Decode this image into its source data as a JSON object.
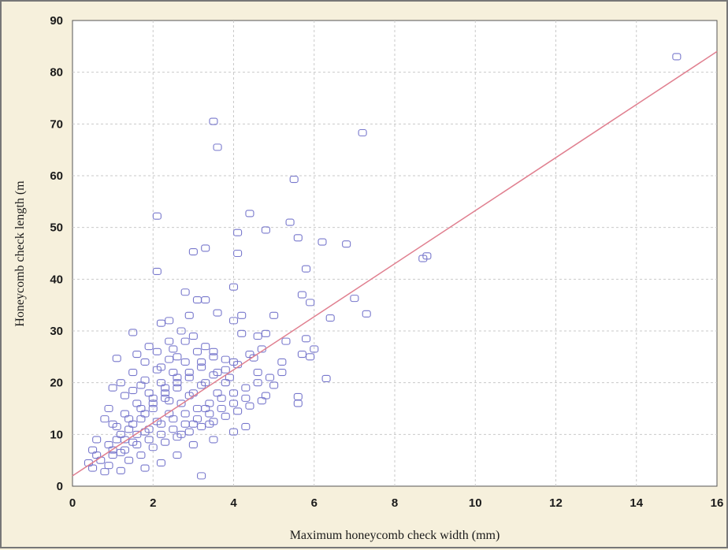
{
  "chart_data": {
    "type": "scatter",
    "title": "",
    "xlabel": "Maximum honeycomb check width (mm)",
    "ylabel": "Honeycomb check length (m",
    "xlim": [
      0,
      16
    ],
    "ylim": [
      0,
      90
    ],
    "xticks": [
      "0",
      "2",
      "4",
      "6",
      "8",
      "10",
      "12",
      "14",
      "16"
    ],
    "yticks": [
      "0",
      "10",
      "20",
      "30",
      "40",
      "50",
      "60",
      "70",
      "80",
      "90"
    ],
    "grid": true,
    "marker_color": "#7777cc",
    "fit_line": {
      "color": "#e07f8f",
      "x": [
        0,
        16
      ],
      "y": [
        2,
        84
      ]
    },
    "series": [
      {
        "points": [
          [
            3.5,
            70.5
          ],
          [
            3.6,
            65.5
          ],
          [
            7.2,
            68.3
          ],
          [
            5.5,
            59.3
          ],
          [
            15.0,
            83.0
          ],
          [
            2.1,
            52.2
          ],
          [
            4.4,
            52.7
          ],
          [
            5.4,
            51.0
          ],
          [
            4.1,
            49.0
          ],
          [
            4.8,
            49.5
          ],
          [
            5.6,
            48.0
          ],
          [
            6.2,
            47.2
          ],
          [
            6.8,
            46.8
          ],
          [
            3.0,
            45.3
          ],
          [
            3.3,
            46.0
          ],
          [
            4.1,
            45.0
          ],
          [
            8.8,
            44.5
          ],
          [
            8.7,
            44.0
          ],
          [
            2.1,
            41.5
          ],
          [
            5.8,
            42.0
          ],
          [
            4.0,
            38.5
          ],
          [
            2.8,
            37.5
          ],
          [
            3.1,
            36.0
          ],
          [
            3.3,
            36.0
          ],
          [
            5.7,
            37.0
          ],
          [
            7.0,
            36.3
          ],
          [
            5.9,
            35.5
          ],
          [
            3.6,
            33.5
          ],
          [
            4.2,
            33.0
          ],
          [
            5.0,
            33.0
          ],
          [
            7.3,
            33.3
          ],
          [
            6.4,
            32.5
          ],
          [
            2.4,
            32.0
          ],
          [
            2.2,
            31.5
          ],
          [
            2.9,
            33.0
          ],
          [
            4.0,
            32.0
          ],
          [
            1.5,
            29.7
          ],
          [
            2.7,
            30.0
          ],
          [
            3.0,
            29.0
          ],
          [
            4.2,
            29.5
          ],
          [
            4.6,
            29.0
          ],
          [
            4.8,
            29.5
          ],
          [
            5.8,
            28.5
          ],
          [
            5.3,
            28.0
          ],
          [
            2.8,
            28.0
          ],
          [
            1.1,
            24.7
          ],
          [
            3.5,
            25.0
          ],
          [
            3.8,
            24.5
          ],
          [
            4.0,
            24.0
          ],
          [
            5.7,
            25.5
          ],
          [
            6.0,
            26.5
          ],
          [
            5.9,
            25.0
          ],
          [
            5.2,
            24.0
          ],
          [
            6.3,
            20.8
          ],
          [
            5.6,
            17.3
          ],
          [
            5.6,
            16.0
          ],
          [
            4.3,
            11.5
          ],
          [
            3.2,
            2.0
          ],
          [
            4.0,
            10.5
          ],
          [
            4.8,
            17.5
          ],
          [
            5.0,
            19.5
          ],
          [
            4.6,
            22.0
          ],
          [
            4.5,
            24.8
          ],
          [
            3.9,
            21.0
          ],
          [
            3.6,
            18.0
          ],
          [
            3.3,
            15.0
          ],
          [
            3.4,
            12.0
          ],
          [
            3.5,
            9.0
          ],
          [
            3.0,
            8.0
          ],
          [
            2.6,
            6.0
          ],
          [
            2.2,
            4.5
          ],
          [
            1.8,
            3.5
          ],
          [
            1.2,
            3.0
          ],
          [
            0.8,
            2.8
          ],
          [
            0.5,
            3.5
          ],
          [
            0.4,
            4.5
          ],
          [
            0.6,
            6.0
          ],
          [
            0.9,
            8.0
          ],
          [
            1.2,
            10.0
          ],
          [
            1.5,
            12.0
          ],
          [
            1.8,
            14.0
          ],
          [
            2.0,
            16.0
          ],
          [
            2.3,
            18.0
          ],
          [
            2.6,
            20.0
          ],
          [
            2.9,
            22.0
          ],
          [
            3.2,
            24.0
          ],
          [
            1.0,
            12.0
          ],
          [
            1.3,
            14.0
          ],
          [
            1.6,
            16.0
          ],
          [
            1.9,
            18.0
          ],
          [
            2.2,
            20.0
          ],
          [
            2.5,
            22.0
          ],
          [
            2.8,
            24.0
          ],
          [
            3.1,
            26.0
          ],
          [
            0.7,
            5.0
          ],
          [
            1.0,
            6.0
          ],
          [
            1.3,
            7.0
          ],
          [
            1.6,
            8.0
          ],
          [
            1.9,
            9.0
          ],
          [
            2.2,
            10.0
          ],
          [
            2.5,
            11.0
          ],
          [
            2.8,
            12.0
          ],
          [
            3.1,
            13.0
          ],
          [
            3.4,
            14.0
          ],
          [
            3.7,
            15.0
          ],
          [
            4.0,
            16.0
          ],
          [
            4.3,
            17.0
          ],
          [
            1.1,
            9.0
          ],
          [
            1.4,
            11.0
          ],
          [
            1.7,
            13.0
          ],
          [
            2.0,
            15.0
          ],
          [
            2.3,
            17.0
          ],
          [
            2.6,
            19.0
          ],
          [
            2.9,
            21.0
          ],
          [
            3.2,
            23.0
          ],
          [
            3.5,
            26.0
          ],
          [
            3.8,
            20.0
          ],
          [
            1.2,
            20.0
          ],
          [
            1.5,
            22.0
          ],
          [
            1.8,
            24.0
          ],
          [
            2.1,
            26.0
          ],
          [
            2.4,
            28.0
          ],
          [
            1.6,
            25.5
          ],
          [
            1.9,
            27.0
          ],
          [
            2.5,
            26.5
          ],
          [
            0.9,
            15.0
          ],
          [
            1.0,
            19.0
          ],
          [
            1.3,
            17.5
          ],
          [
            0.8,
            13.0
          ],
          [
            0.6,
            9.0
          ],
          [
            0.5,
            7.0
          ],
          [
            0.9,
            4.0
          ],
          [
            1.4,
            5.0
          ],
          [
            1.7,
            6.0
          ],
          [
            2.0,
            7.5
          ],
          [
            2.3,
            8.5
          ],
          [
            2.6,
            9.5
          ],
          [
            2.9,
            10.5
          ],
          [
            3.2,
            11.5
          ],
          [
            3.5,
            12.5
          ],
          [
            3.8,
            13.5
          ],
          [
            4.1,
            14.5
          ],
          [
            4.4,
            15.5
          ],
          [
            4.7,
            16.5
          ],
          [
            1.1,
            11.5
          ],
          [
            1.4,
            13.0
          ],
          [
            1.7,
            15.0
          ],
          [
            2.0,
            17.0
          ],
          [
            2.3,
            19.0
          ],
          [
            2.6,
            21.0
          ],
          [
            2.9,
            17.5
          ],
          [
            3.2,
            19.5
          ],
          [
            3.5,
            21.5
          ],
          [
            3.8,
            22.5
          ],
          [
            4.1,
            23.5
          ],
          [
            4.4,
            25.5
          ],
          [
            4.7,
            26.5
          ],
          [
            1.0,
            7.0
          ],
          [
            1.3,
            9.0
          ],
          [
            1.6,
            10.0
          ],
          [
            1.9,
            11.0
          ],
          [
            2.2,
            12.0
          ],
          [
            2.5,
            13.0
          ],
          [
            2.8,
            14.0
          ],
          [
            3.1,
            15.0
          ],
          [
            3.4,
            16.0
          ],
          [
            3.7,
            17.0
          ],
          [
            4.0,
            18.0
          ],
          [
            4.3,
            19.0
          ],
          [
            4.6,
            20.0
          ],
          [
            4.9,
            21.0
          ],
          [
            5.2,
            22.0
          ],
          [
            1.5,
            18.5
          ],
          [
            1.8,
            20.5
          ],
          [
            2.1,
            22.5
          ],
          [
            2.4,
            24.5
          ],
          [
            2.7,
            16.0
          ],
          [
            3.0,
            18.0
          ],
          [
            3.3,
            20.0
          ],
          [
            3.6,
            22.0
          ],
          [
            2.4,
            14.0
          ],
          [
            2.7,
            10.0
          ],
          [
            3.0,
            12.0
          ],
          [
            1.2,
            6.5
          ],
          [
            1.5,
            8.5
          ],
          [
            1.8,
            10.5
          ],
          [
            2.1,
            12.5
          ],
          [
            2.4,
            16.5
          ],
          [
            1.7,
            19.5
          ],
          [
            2.2,
            23.0
          ],
          [
            2.6,
            25.0
          ],
          [
            3.3,
            27.0
          ]
        ]
      }
    ]
  }
}
